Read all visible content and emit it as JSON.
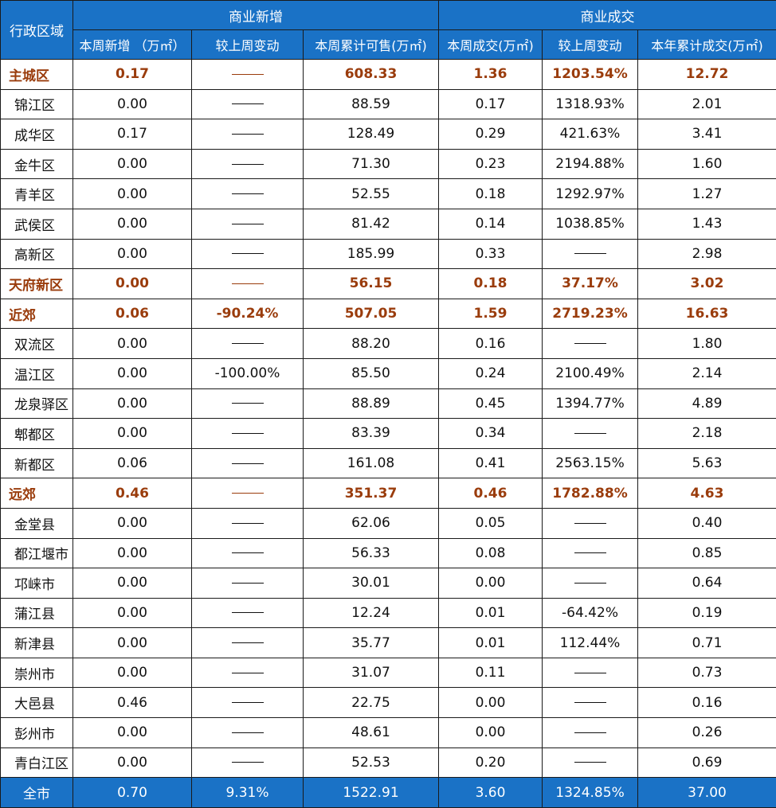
{
  "header": {
    "region_label": "行政区域",
    "group_new": "商业新增",
    "group_deal": "商业成交",
    "columns": [
      "本周新增 （万㎡）",
      "较上周变动",
      "本周累计可售(万㎡)",
      "本周成交(万㎡)",
      "较上周变动",
      "本年累计成交(万㎡)"
    ]
  },
  "rows": [
    {
      "name": "主城区",
      "group": true,
      "cells": [
        "0.17",
        "—",
        "608.33",
        "1.36",
        "1203.54%",
        "12.72"
      ]
    },
    {
      "name": "锦江区",
      "group": false,
      "cells": [
        "0.00",
        "—",
        "88.59",
        "0.17",
        "1318.93%",
        "2.01"
      ]
    },
    {
      "name": "成华区",
      "group": false,
      "cells": [
        "0.17",
        "—",
        "128.49",
        "0.29",
        "421.63%",
        "3.41"
      ]
    },
    {
      "name": "金牛区",
      "group": false,
      "cells": [
        "0.00",
        "—",
        "71.30",
        "0.23",
        "2194.88%",
        "1.60"
      ]
    },
    {
      "name": "青羊区",
      "group": false,
      "cells": [
        "0.00",
        "—",
        "52.55",
        "0.18",
        "1292.97%",
        "1.27"
      ]
    },
    {
      "name": "武侯区",
      "group": false,
      "cells": [
        "0.00",
        "—",
        "81.42",
        "0.14",
        "1038.85%",
        "1.43"
      ]
    },
    {
      "name": "高新区",
      "group": false,
      "cells": [
        "0.00",
        "—",
        "185.99",
        "0.33",
        "—",
        "2.98"
      ]
    },
    {
      "name": "天府新区",
      "group": true,
      "cells": [
        "0.00",
        "—",
        "56.15",
        "0.18",
        "37.17%",
        "3.02"
      ]
    },
    {
      "name": "近郊",
      "group": true,
      "cells": [
        "0.06",
        "-90.24%",
        "507.05",
        "1.59",
        "2719.23%",
        "16.63"
      ]
    },
    {
      "name": "双流区",
      "group": false,
      "cells": [
        "0.00",
        "—",
        "88.20",
        "0.16",
        "—",
        "1.80"
      ]
    },
    {
      "name": "温江区",
      "group": false,
      "cells": [
        "0.00",
        "-100.00%",
        "85.50",
        "0.24",
        "2100.49%",
        "2.14"
      ]
    },
    {
      "name": "龙泉驿区",
      "group": false,
      "cells": [
        "0.00",
        "—",
        "88.89",
        "0.45",
        "1394.77%",
        "4.89"
      ]
    },
    {
      "name": "郫都区",
      "group": false,
      "cells": [
        "0.00",
        "—",
        "83.39",
        "0.34",
        "—",
        "2.18"
      ]
    },
    {
      "name": "新都区",
      "group": false,
      "cells": [
        "0.06",
        "—",
        "161.08",
        "0.41",
        "2563.15%",
        "5.63"
      ]
    },
    {
      "name": "远郊",
      "group": true,
      "cells": [
        "0.46",
        "—",
        "351.37",
        "0.46",
        "1782.88%",
        "4.63"
      ]
    },
    {
      "name": "金堂县",
      "group": false,
      "cells": [
        "0.00",
        "—",
        "62.06",
        "0.05",
        "—",
        "0.40"
      ]
    },
    {
      "name": "都江堰市",
      "group": false,
      "cells": [
        "0.00",
        "—",
        "56.33",
        "0.08",
        "—",
        "0.85"
      ]
    },
    {
      "name": "邛崃市",
      "group": false,
      "cells": [
        "0.00",
        "—",
        "30.01",
        "0.00",
        "—",
        "0.64"
      ]
    },
    {
      "name": "蒲江县",
      "group": false,
      "cells": [
        "0.00",
        "—",
        "12.24",
        "0.01",
        "-64.42%",
        "0.19"
      ]
    },
    {
      "name": "新津县",
      "group": false,
      "cells": [
        "0.00",
        "—",
        "35.77",
        "0.01",
        "112.44%",
        "0.71"
      ]
    },
    {
      "name": "崇州市",
      "group": false,
      "cells": [
        "0.00",
        "—",
        "31.07",
        "0.11",
        "—",
        "0.73"
      ]
    },
    {
      "name": "大邑县",
      "group": false,
      "cells": [
        "0.46",
        "—",
        "22.75",
        "0.00",
        "—",
        "0.16"
      ]
    },
    {
      "name": "彭州市",
      "group": false,
      "cells": [
        "0.00",
        "—",
        "48.61",
        "0.00",
        "—",
        "0.26"
      ]
    },
    {
      "name": "青白江区",
      "group": false,
      "cells": [
        "0.00",
        "—",
        "52.53",
        "0.20",
        "—",
        "0.69"
      ]
    }
  ],
  "total": {
    "name": "全市",
    "cells": [
      "0.70",
      "9.31%",
      "1522.91",
      "3.60",
      "1324.85%",
      "37.00"
    ]
  },
  "colors": {
    "header_bg": "#1a72c6",
    "group_text": "#9a3c0c"
  }
}
